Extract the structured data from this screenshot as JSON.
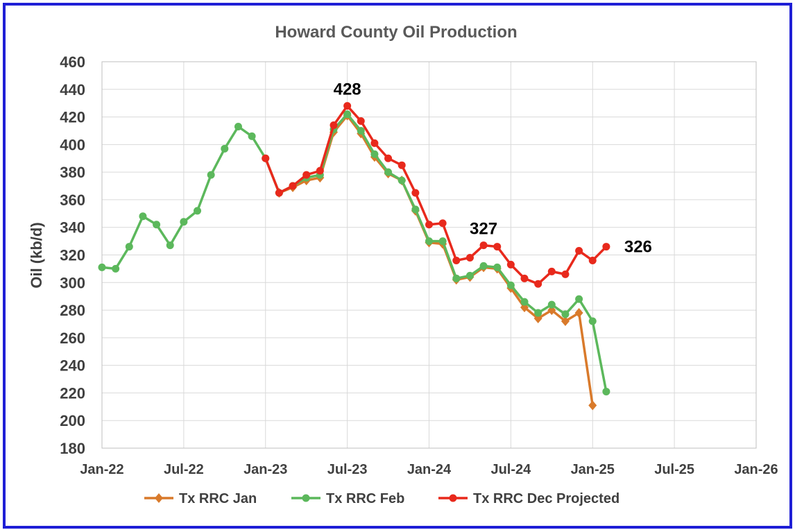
{
  "chart_data": {
    "type": "line",
    "title": "Howard County Oil Production",
    "ylabel": "Oil (kb/d)",
    "ylim": [
      180,
      460
    ],
    "yticks": [
      180,
      200,
      220,
      240,
      260,
      280,
      300,
      320,
      340,
      360,
      380,
      400,
      420,
      440,
      460
    ],
    "xlim": [
      "2022-01",
      "2026-01"
    ],
    "xtick_labels": [
      "Jan-22",
      "Jul-22",
      "Jan-23",
      "Jul-23",
      "Jan-24",
      "Jul-24",
      "Jan-25",
      "Jul-25",
      "Jan-26"
    ],
    "xtick_months": [
      0,
      6,
      12,
      18,
      24,
      30,
      36,
      42,
      48
    ],
    "grid": true,
    "legend_position": "bottom",
    "series": [
      {
        "name": "Tx RRC Jan",
        "color": "#d97a2b",
        "marker": "diamond",
        "points": [
          [
            "2023-02",
            365
          ],
          [
            "2023-03",
            369
          ],
          [
            "2023-04",
            374
          ],
          [
            "2023-05",
            376
          ],
          [
            "2023-06",
            409
          ],
          [
            "2023-07",
            421
          ],
          [
            "2023-08",
            408
          ],
          [
            "2023-09",
            391
          ],
          [
            "2023-10",
            379
          ],
          [
            "2023-11",
            374
          ],
          [
            "2023-12",
            352
          ],
          [
            "2024-01",
            329
          ],
          [
            "2024-02",
            328
          ],
          [
            "2024-03",
            302
          ],
          [
            "2024-04",
            304
          ],
          [
            "2024-05",
            311
          ],
          [
            "2024-06",
            310
          ],
          [
            "2024-07",
            296
          ],
          [
            "2024-08",
            282
          ],
          [
            "2024-09",
            274
          ],
          [
            "2024-10",
            280
          ],
          [
            "2024-11",
            272
          ],
          [
            "2024-12",
            278
          ],
          [
            "2025-01",
            211
          ]
        ]
      },
      {
        "name": "Tx RRC Feb",
        "color": "#5cb85c",
        "marker": "circle",
        "points": [
          [
            "2022-01",
            311
          ],
          [
            "2022-02",
            310
          ],
          [
            "2022-03",
            326
          ],
          [
            "2022-04",
            348
          ],
          [
            "2022-05",
            342
          ],
          [
            "2022-06",
            327
          ],
          [
            "2022-07",
            344
          ],
          [
            "2022-08",
            352
          ],
          [
            "2022-09",
            378
          ],
          [
            "2022-10",
            397
          ],
          [
            "2022-11",
            413
          ],
          [
            "2022-12",
            406
          ],
          [
            "2023-01",
            390
          ],
          [
            "2023-02",
            365
          ],
          [
            "2023-03",
            370
          ],
          [
            "2023-04",
            376
          ],
          [
            "2023-05",
            378
          ],
          [
            "2023-06",
            411
          ],
          [
            "2023-07",
            422
          ],
          [
            "2023-08",
            410
          ],
          [
            "2023-09",
            393
          ],
          [
            "2023-10",
            380
          ],
          [
            "2023-11",
            374
          ],
          [
            "2023-12",
            353
          ],
          [
            "2024-01",
            330
          ],
          [
            "2024-02",
            330
          ],
          [
            "2024-03",
            303
          ],
          [
            "2024-04",
            305
          ],
          [
            "2024-05",
            312
          ],
          [
            "2024-06",
            311
          ],
          [
            "2024-07",
            298
          ],
          [
            "2024-08",
            286
          ],
          [
            "2024-09",
            278
          ],
          [
            "2024-10",
            284
          ],
          [
            "2024-11",
            277
          ],
          [
            "2024-12",
            288
          ],
          [
            "2025-01",
            272
          ],
          [
            "2025-02",
            221
          ]
        ]
      },
      {
        "name": "Tx RRC Dec Projected",
        "color": "#e8291c",
        "marker": "circle",
        "points": [
          [
            "2023-01",
            390
          ],
          [
            "2023-02",
            365
          ],
          [
            "2023-03",
            370
          ],
          [
            "2023-04",
            378
          ],
          [
            "2023-05",
            381
          ],
          [
            "2023-06",
            414
          ],
          [
            "2023-07",
            428
          ],
          [
            "2023-08",
            417
          ],
          [
            "2023-09",
            401
          ],
          [
            "2023-10",
            390
          ],
          [
            "2023-11",
            385
          ],
          [
            "2023-12",
            365
          ],
          [
            "2024-01",
            342
          ],
          [
            "2024-02",
            343
          ],
          [
            "2024-03",
            316
          ],
          [
            "2024-04",
            318
          ],
          [
            "2024-05",
            327
          ],
          [
            "2024-06",
            326
          ],
          [
            "2024-07",
            313
          ],
          [
            "2024-08",
            303
          ],
          [
            "2024-09",
            299
          ],
          [
            "2024-10",
            308
          ],
          [
            "2024-11",
            306
          ],
          [
            "2024-12",
            323
          ],
          [
            "2025-01",
            316
          ],
          [
            "2025-02",
            326
          ]
        ]
      }
    ],
    "annotations": [
      {
        "text": "428",
        "x": "2023-07",
        "y": 428
      },
      {
        "text": "327",
        "x": "2024-05",
        "y": 327
      },
      {
        "text": "326",
        "x": "2025-02",
        "y": 326
      }
    ]
  },
  "colors": {
    "frame_border": "#1f1fd6",
    "grid": "#d9d9d9"
  }
}
